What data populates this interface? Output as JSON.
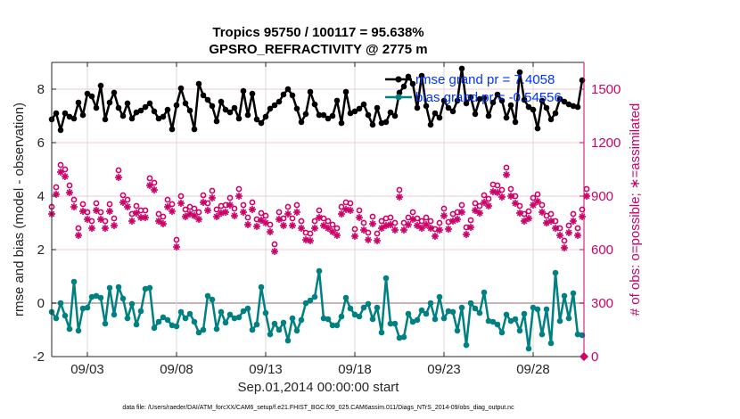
{
  "chart_data": {
    "type": "line",
    "title": "Tropics 95750 / 100117 = 95.638%",
    "subtitle": "GPSRO_REFRACTIVITY @ 2775 m",
    "xlabel": "Sep.01,2014 00:00:00 start",
    "ylabel": "rmse and bias (model - observation)",
    "ylabel_right": "# of obs: o=possible; ∗=assimilated",
    "footnote": "data file: /Users/raeder/DAI/ATM_forcXX/CAM6_setup/f.e21.FHIST_BGC.f09_025.CAM6assim.011/Diags_NTrS_2014-09/obs_diag_output.nc",
    "x_unit": "days since 2014-09-01 00:00",
    "x_step_days": 0.25,
    "xlim": [
      0,
      29.85
    ],
    "x_ticks": [
      {
        "value": 2,
        "label": "09/03"
      },
      {
        "value": 7,
        "label": "09/08"
      },
      {
        "value": 12,
        "label": "09/13"
      },
      {
        "value": 17,
        "label": "09/18"
      },
      {
        "value": 22,
        "label": "09/23"
      },
      {
        "value": 27,
        "label": "09/28"
      }
    ],
    "ylim": [
      -2,
      9
    ],
    "y_ticks": [
      -2,
      0,
      2,
      4,
      6,
      8
    ],
    "ylim_right": [
      0,
      1650
    ],
    "y_ticks_right": [
      0,
      300,
      600,
      900,
      1200,
      1500
    ],
    "grid": true,
    "zero_line": true,
    "legend": {
      "placement": "top-right",
      "entries": [
        {
          "label": "rmse grand pr = 7.4058",
          "series": "rmse"
        },
        {
          "label": "bias grand pr = -0.54556",
          "series": "bias"
        }
      ]
    },
    "colors": {
      "rmse": "#000000",
      "bias": "#008080",
      "obs": "#cc0066",
      "legend_text": "#0033ff",
      "grid": "#f0c8d8",
      "vgrid": "#d9d9d9",
      "zero_line": "#c8b4b8"
    },
    "series": [
      {
        "name": "rmse",
        "axis": "left",
        "values": [
          6.87,
          7.1,
          6.47,
          7.1,
          6.97,
          6.9,
          7.5,
          7.03,
          7.83,
          7.73,
          7.3,
          8.13,
          6.87,
          7.5,
          7.87,
          7.3,
          7.0,
          7.47,
          6.9,
          7.13,
          7.2,
          7.33,
          7.47,
          7.17,
          6.9,
          6.97,
          7.23,
          6.5,
          7.4,
          8.03,
          7.47,
          7.2,
          6.5,
          8.2,
          7.77,
          7.6,
          7.37,
          6.8,
          7.53,
          7.23,
          7.13,
          7.3,
          6.9,
          7.93,
          7.03,
          7.83,
          6.87,
          6.73,
          6.97,
          7.27,
          7.4,
          7.53,
          7.8,
          8.0,
          7.77,
          7.27,
          6.77,
          7.07,
          7.9,
          7.43,
          7.03,
          7.03,
          6.9,
          7.0,
          7.57,
          6.73,
          7.9,
          7.1,
          7.17,
          7.27,
          7.43,
          7.03,
          6.67,
          7.3,
          6.73,
          6.77,
          7.13,
          7.0,
          7.87,
          8.1,
          8.47,
          8.2,
          7.3,
          8.5,
          7.37,
          6.67,
          7.1,
          6.93,
          7.57,
          7.3,
          7.17,
          7.57,
          8.77,
          7.47,
          7.7,
          7.07,
          7.63,
          7.67,
          7.0,
          7.5,
          7.8,
          7.57,
          6.93,
          7.4,
          6.77,
          8.63,
          7.6,
          7.33,
          7.23,
          6.53,
          7.57,
          7.3,
          6.87,
          7.1,
          7.63,
          7.53,
          7.43,
          7.37,
          7.33,
          8.33
        ],
        "marker": "filled-circle"
      },
      {
        "name": "bias",
        "axis": "left",
        "values": [
          -0.33,
          -0.57,
          0.0,
          -0.47,
          -0.97,
          0.8,
          -1.03,
          -0.2,
          -0.17,
          0.23,
          0.27,
          0.2,
          -0.77,
          0.57,
          -0.43,
          0.6,
          0.17,
          -0.57,
          -0.03,
          -0.8,
          -0.3,
          0.53,
          0.57,
          -0.93,
          -0.7,
          -0.53,
          -0.63,
          -0.83,
          -0.87,
          -0.33,
          -0.57,
          -0.4,
          -0.7,
          -1.1,
          -1.0,
          0.27,
          0.13,
          -0.97,
          -0.33,
          -0.73,
          -0.43,
          -0.57,
          -0.53,
          -0.3,
          -0.2,
          -1.0,
          -0.8,
          0.6,
          -0.37,
          -1.17,
          -0.77,
          -1.0,
          -0.73,
          -1.4,
          -0.57,
          -1.03,
          -0.63,
          0.0,
          0.1,
          0.23,
          1.2,
          -0.57,
          -0.6,
          -0.83,
          -0.83,
          -0.5,
          0.2,
          -0.2,
          -0.43,
          -0.5,
          -0.17,
          -0.03,
          -0.6,
          -0.17,
          -1.1,
          0.93,
          -0.77,
          -0.77,
          -1.3,
          -1.27,
          -0.4,
          -0.7,
          -0.63,
          -0.27,
          -0.4,
          0.0,
          -0.6,
          0.23,
          -0.57,
          -0.3,
          -0.33,
          -1.03,
          -0.17,
          -1.57,
          0.0,
          -0.2,
          -0.37,
          0.4,
          -0.67,
          -0.7,
          -0.8,
          -1.1,
          -0.43,
          -0.67,
          -0.6,
          -1.03,
          -0.4,
          -1.7,
          -0.17,
          -0.23,
          -1.17,
          -0.23,
          -1.5,
          1.13,
          -0.67,
          0.27,
          -0.57,
          0.37,
          -1.17,
          -1.2
        ],
        "marker": "filled-circle"
      },
      {
        "name": "obs_possible",
        "axis": "right",
        "values": [
          840,
          950,
          1075,
          1050,
          960,
          880,
          720,
          855,
          810,
          760,
          860,
          810,
          760,
          855,
          775,
          1045,
          905,
          880,
          800,
          845,
          820,
          820,
          1000,
          975,
          800,
          785,
          880,
          855,
          655,
          900,
          825,
          840,
          830,
          810,
          905,
          860,
          930,
          825,
          845,
          850,
          890,
          830,
          940,
          850,
          780,
          865,
          770,
          805,
          790,
          740,
          630,
          810,
          775,
          840,
          775,
          850,
          760,
          695,
          690,
          760,
          820,
          775,
          760,
          740,
          720,
          840,
          865,
          860,
          715,
          820,
          750,
          695,
          785,
          690,
          760,
          775,
          780,
          750,
          935,
          750,
          780,
          810,
          775,
          760,
          780,
          760,
          715,
          750,
          830,
          755,
          800,
          810,
          850,
          725,
          765,
          860,
          845,
          905,
          885,
          965,
          960,
          935,
          1060,
          940,
          900,
          845,
          800,
          815,
          890,
          910,
          850,
          790,
          800,
          760,
          720,
          650,
          735,
          800,
          720,
          825,
          940
        ],
        "marker": "open-circle"
      },
      {
        "name": "obs_assimilated",
        "axis": "right",
        "values": [
          800,
          910,
          1035,
          1010,
          920,
          840,
          680,
          815,
          770,
          720,
          820,
          770,
          720,
          815,
          735,
          1005,
          865,
          840,
          760,
          805,
          780,
          780,
          960,
          935,
          760,
          745,
          840,
          815,
          615,
          860,
          785,
          800,
          790,
          770,
          865,
          820,
          890,
          785,
          805,
          810,
          850,
          790,
          900,
          810,
          740,
          825,
          730,
          765,
          750,
          700,
          590,
          770,
          735,
          800,
          735,
          810,
          720,
          655,
          650,
          720,
          780,
          735,
          720,
          700,
          680,
          800,
          825,
          820,
          675,
          780,
          710,
          655,
          745,
          650,
          720,
          735,
          740,
          710,
          895,
          710,
          740,
          770,
          735,
          720,
          740,
          720,
          675,
          710,
          790,
          715,
          760,
          770,
          810,
          685,
          725,
          820,
          805,
          865,
          845,
          925,
          920,
          895,
          1020,
          900,
          860,
          805,
          760,
          775,
          850,
          870,
          810,
          750,
          760,
          720,
          680,
          610,
          695,
          760,
          680,
          785,
          900
        ],
        "marker": "asterisk"
      }
    ]
  }
}
